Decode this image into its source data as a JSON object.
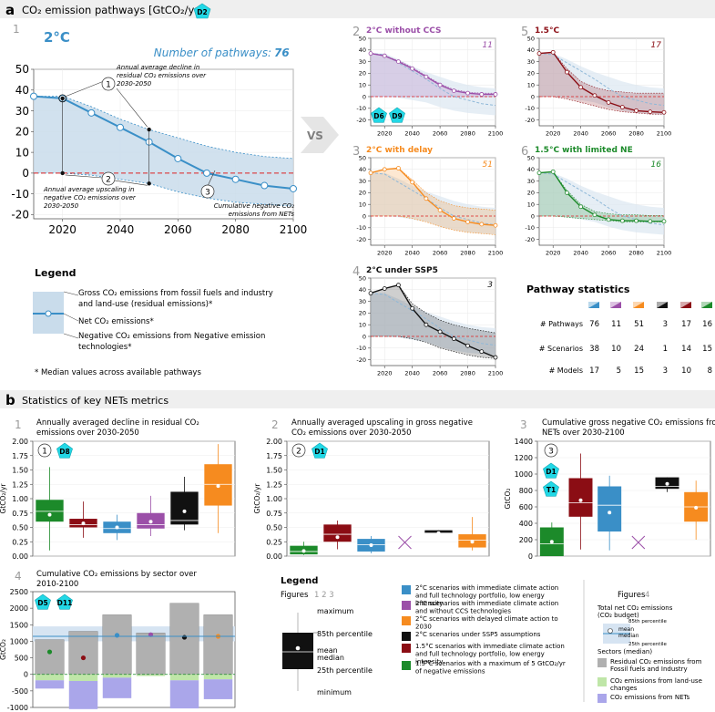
{
  "panel_a": {
    "letter": "a",
    "title": "CO₂ emission pathways [GtCO₂/yr]",
    "badge": "D2",
    "vs": "VS",
    "main": {
      "index": "1",
      "name": "2°C",
      "npath_label": "Number of pathways:",
      "npath_value": "76",
      "ann1": "Annual average decline in residual CO₂ emissions over 2030-2050",
      "ann2": "Annual average upscaling in negative CO₂ emissions over 2030-2050",
      "ann3": "Cumulative negative CO₂ emissions from NETs",
      "n1": "1",
      "n2": "2",
      "n3": "3"
    },
    "legend": {
      "title": "Legend",
      "gross": "Gross CO₂ emissions from fossil fuels and industry and land-use (residual emissions)*",
      "net": "Net CO₂ emissions*",
      "neg": "Negative CO₂ emissions from Negative emission technologies*",
      "note": "* Median values across available pathways"
    },
    "small_badges": [
      "D6",
      "D9"
    ],
    "stats": {
      "title": "Pathway statistics",
      "rows": [
        {
          "label": "# Pathways",
          "values": [
            "76",
            "11",
            "51",
            "3",
            "17",
            "16"
          ]
        },
        {
          "label": "# Scenarios",
          "values": [
            "38",
            "10",
            "24",
            "1",
            "14",
            "15"
          ]
        },
        {
          "label": "# Models",
          "values": [
            "17",
            "5",
            "15",
            "3",
            "10",
            "8"
          ]
        }
      ]
    }
  },
  "panel_b": {
    "letter": "b",
    "title": "Statistics of key NETs metrics",
    "c1": {
      "index": "1",
      "title": "Annually averaged decline in residual CO₂ emissions over 2030-2050",
      "badge": "D8",
      "n": "1"
    },
    "c2": {
      "index": "2",
      "title": "Annually averaged upscaling in gross negative CO₂ emissions over 2030-2050",
      "badge": "D1",
      "n": "2"
    },
    "c3": {
      "index": "3",
      "title": "Cumulative gross negative CO₂ emissions from NETs over 2030-2100",
      "badges": [
        "D1",
        "T1"
      ],
      "n": "3"
    },
    "c4": {
      "index": "4",
      "title": "Cumulative CO₂ emissions by sector over 2010-2100",
      "badges": [
        "D5",
        "D11"
      ]
    },
    "legend": {
      "title": "Legend",
      "figures_label": "Figures",
      "figures_nums": "1 2 3",
      "box_labels": [
        "maximum",
        "85th percentile",
        "mean",
        "median",
        "25th percentile",
        "minimum"
      ],
      "entries": [
        {
          "color": "#3a8fc7",
          "text": "2°C scenarios with immediate climate action and full technology portfolio, low energy intensity"
        },
        {
          "color": "#9b4fa8",
          "text": "2°C scenarios with immediate climate action and without CCS technologies"
        },
        {
          "color": "#f68b1f",
          "text": "2°C scenarios with delayed climate action to 2030"
        },
        {
          "color": "#111111",
          "text": "2°C scenarios under SSP5 assumptions"
        },
        {
          "color": "#8b0d14",
          "text": "1.5°C scenarios with immediate climate action and full technology portfolio, low energy intensity"
        },
        {
          "color": "#1c8a2a",
          "text": "1.5°C scenarios with a maximum of 5 GtCO₂/yr of negative emissions"
        }
      ],
      "fig4_label": "Figures",
      "fig4_num": "4",
      "fig4_total": "Total net CO₂ emissions (CO₂ budget)",
      "fig4_p85": "85th percentile",
      "fig4_mean": "mean",
      "fig4_median": "median",
      "fig4_p25": "25th percentile",
      "fig4_sectors": "Sectors (median)",
      "fig4_s1": "Residual CO₂ emissions from Fossil fuels and Industry",
      "fig4_s2": "CO₂ emissions from land-use changes",
      "fig4_s3": "CO₂ emissions from NETs"
    }
  },
  "chart_data": [
    {
      "id": "main_2C",
      "type": "line",
      "title": "2°C",
      "x": [
        2010,
        2020,
        2030,
        2040,
        2050,
        2060,
        2070,
        2080,
        2090,
        2100
      ],
      "series": [
        {
          "name": "Net CO₂ emissions (median)",
          "values": [
            37,
            36,
            29,
            22,
            15,
            7,
            0,
            -3,
            -6,
            -7.5
          ]
        },
        {
          "name": "Gross emissions (upper envelope)",
          "values": [
            37,
            37,
            32,
            26,
            21,
            17,
            13,
            10,
            8,
            7
          ]
        },
        {
          "name": "Negative emissions (lower envelope)",
          "values": [
            0,
            0,
            -1,
            -3,
            -5,
            -9,
            -12,
            -14,
            -15,
            -16
          ]
        }
      ],
      "xlim": [
        2010,
        2100
      ],
      "ylim": [
        -22,
        50
      ],
      "xticks": [
        2020,
        2040,
        2060,
        2080,
        2100
      ],
      "yticks": [
        -20,
        -10,
        0,
        10,
        20,
        30,
        40,
        50
      ],
      "annotation_points": [
        {
          "x": 2020,
          "y": 36
        },
        {
          "x": 2050,
          "y": 21
        },
        {
          "x": 2020,
          "y": 0
        },
        {
          "x": 2050,
          "y": -5
        }
      ]
    },
    {
      "id": "p2",
      "index": "2",
      "type": "line",
      "title": "2°C without CCS",
      "count": "11",
      "color": "#9b4fa8",
      "x": [
        2010,
        2020,
        2030,
        2040,
        2050,
        2060,
        2070,
        2080,
        2090,
        2100
      ],
      "net": [
        37,
        35,
        30,
        24,
        17,
        10,
        5,
        3,
        2,
        2
      ],
      "upper": [
        37,
        35,
        31,
        25,
        18,
        11,
        6,
        4,
        3,
        3
      ],
      "lower": [
        0,
        0,
        0,
        0,
        0,
        0,
        0,
        0,
        0,
        0
      ],
      "ref": [
        37,
        36,
        29,
        22,
        15,
        7,
        0,
        -3,
        -6,
        -7.5
      ],
      "xlim": [
        2010,
        2100
      ],
      "ylim": [
        -25,
        50
      ],
      "xticks": [
        2020,
        2040,
        2060,
        2080,
        2100
      ],
      "yticks": [
        -20,
        -10,
        0,
        10,
        20,
        30,
        40,
        50
      ]
    },
    {
      "id": "p5",
      "index": "5",
      "type": "line",
      "title": "1.5°C",
      "count": "17",
      "color": "#8b0d14",
      "x": [
        2010,
        2020,
        2030,
        2040,
        2050,
        2060,
        2070,
        2080,
        2090,
        2100
      ],
      "net": [
        37,
        38,
        21,
        8,
        1,
        -5,
        -9,
        -12,
        -13,
        -13.5
      ],
      "upper": [
        37,
        38,
        24,
        13,
        8,
        5,
        4,
        3,
        3,
        3
      ],
      "lower": [
        0,
        0,
        -2,
        -5,
        -8,
        -11,
        -13,
        -14,
        -15,
        -15
      ],
      "ref": [
        37,
        36,
        29,
        22,
        15,
        7,
        0,
        -3,
        -6,
        -7.5
      ],
      "xlim": [
        2010,
        2100
      ],
      "ylim": [
        -25,
        50
      ],
      "xticks": [
        2020,
        2040,
        2060,
        2080,
        2100
      ],
      "yticks": [
        -20,
        -10,
        0,
        10,
        20,
        30,
        40,
        50
      ]
    },
    {
      "id": "p3",
      "index": "3",
      "type": "line",
      "title": "2°C with delay",
      "count": "51",
      "color": "#f68b1f",
      "x": [
        2010,
        2020,
        2030,
        2040,
        2050,
        2060,
        2070,
        2080,
        2090,
        2100
      ],
      "net": [
        37,
        40,
        41,
        29,
        15,
        5,
        -2,
        -5,
        -7,
        -8
      ],
      "upper": [
        37,
        40,
        41,
        31,
        20,
        13,
        9,
        7,
        6,
        5
      ],
      "lower": [
        0,
        0,
        0,
        -2,
        -5,
        -9,
        -12,
        -14,
        -15,
        -16
      ],
      "ref": [
        37,
        36,
        29,
        22,
        15,
        7,
        0,
        -3,
        -6,
        -7.5
      ],
      "xlim": [
        2010,
        2100
      ],
      "ylim": [
        -25,
        50
      ],
      "xticks": [
        2020,
        2040,
        2060,
        2080,
        2100
      ],
      "yticks": [
        -20,
        -10,
        0,
        10,
        20,
        30,
        40,
        50
      ]
    },
    {
      "id": "p6",
      "index": "6",
      "type": "line",
      "title": "1.5°C with limited NE",
      "count": "16",
      "color": "#1c8a2a",
      "x": [
        2010,
        2020,
        2030,
        2040,
        2050,
        2060,
        2070,
        2080,
        2090,
        2100
      ],
      "net": [
        37,
        38,
        20,
        8,
        1,
        -3,
        -4,
        -4,
        -4.5,
        -4.5
      ],
      "upper": [
        37,
        38,
        22,
        10,
        4,
        2,
        1,
        1,
        0.5,
        0.5
      ],
      "lower": [
        0,
        0,
        -1,
        -2,
        -3,
        -4,
        -5,
        -5,
        -5,
        -5
      ],
      "ref": [
        37,
        36,
        29,
        22,
        15,
        7,
        0,
        -3,
        -6,
        -7.5
      ],
      "xlim": [
        2010,
        2100
      ],
      "ylim": [
        -25,
        50
      ],
      "xticks": [
        2020,
        2040,
        2060,
        2080,
        2100
      ],
      "yticks": [
        -20,
        -10,
        0,
        10,
        20,
        30,
        40,
        50
      ]
    },
    {
      "id": "p4",
      "index": "4",
      "type": "line",
      "title": "2°C under SSP5",
      "count": "3",
      "color": "#111111",
      "x": [
        2010,
        2020,
        2030,
        2040,
        2050,
        2060,
        2070,
        2080,
        2090,
        2100
      ],
      "net": [
        37,
        41,
        44,
        24,
        10,
        4,
        -2,
        -8,
        -13,
        -18
      ],
      "upper": [
        37,
        41,
        44,
        28,
        20,
        14,
        10,
        7,
        5,
        3
      ],
      "lower": [
        0,
        0,
        0,
        -2,
        -5,
        -10,
        -13,
        -16,
        -18,
        -19
      ],
      "ref": [
        37,
        36,
        29,
        22,
        15,
        7,
        0,
        -3,
        -6,
        -7.5
      ],
      "xlim": [
        2010,
        2100
      ],
      "ylim": [
        -25,
        50
      ],
      "xticks": [
        2020,
        2040,
        2060,
        2080,
        2100
      ],
      "yticks": [
        -20,
        -10,
        0,
        10,
        20,
        30,
        40,
        50
      ]
    },
    {
      "id": "b1",
      "type": "box",
      "ylabel": "GtCO₂/yr",
      "ylim": [
        0,
        2.0
      ],
      "yticks": [
        0.0,
        0.25,
        0.5,
        0.75,
        1.0,
        1.25,
        1.5,
        1.75,
        2.0
      ],
      "boxes": [
        {
          "color": "#1c8a2a",
          "min": 0.1,
          "p25": 0.6,
          "median": 0.78,
          "p85": 0.98,
          "max": 1.55,
          "mean": 0.72
        },
        {
          "color": "#8b0d14",
          "min": 0.32,
          "p25": 0.5,
          "median": 0.55,
          "p85": 0.65,
          "max": 0.95,
          "mean": 0.57
        },
        {
          "color": "#3a8fc7",
          "min": 0.28,
          "p25": 0.4,
          "median": 0.48,
          "p85": 0.6,
          "max": 0.72,
          "mean": 0.5
        },
        {
          "color": "#9b4fa8",
          "min": 0.35,
          "p25": 0.48,
          "median": 0.55,
          "p85": 0.75,
          "max": 1.05,
          "mean": 0.6
        },
        {
          "color": "#111111",
          "min": 0.45,
          "p25": 0.55,
          "median": 0.62,
          "p85": 1.12,
          "max": 1.38,
          "mean": 0.78
        },
        {
          "color": "#f68b1f",
          "min": 0.4,
          "p25": 0.88,
          "median": 1.25,
          "p85": 1.6,
          "max": 1.95,
          "mean": 1.22
        }
      ]
    },
    {
      "id": "b2",
      "type": "box",
      "ylabel": "GtCO₂/yr",
      "ylim": [
        0,
        2.0
      ],
      "yticks": [
        0.0,
        0.25,
        0.5,
        0.75,
        1.0,
        1.25,
        1.5,
        1.75,
        2.0
      ],
      "boxes": [
        {
          "color": "#1c8a2a",
          "min": 0.02,
          "p25": 0.03,
          "median": 0.08,
          "p85": 0.18,
          "max": 0.25,
          "mean": 0.09
        },
        {
          "color": "#8b0d14",
          "min": 0.12,
          "p25": 0.25,
          "median": 0.38,
          "p85": 0.55,
          "max": 0.62,
          "mean": 0.33
        },
        {
          "color": "#3a8fc7",
          "min": 0.05,
          "p25": 0.08,
          "median": 0.2,
          "p85": 0.3,
          "max": 0.35,
          "mean": 0.19
        },
        {
          "color": "#9b4fa8",
          "empty": true
        },
        {
          "color": "#111111",
          "min": 0.4,
          "p25": 0.4,
          "median": 0.4,
          "p85": 0.45,
          "max": 0.45,
          "mean": 0.4
        },
        {
          "color": "#f68b1f",
          "min": 0.1,
          "p25": 0.15,
          "median": 0.28,
          "p85": 0.38,
          "max": 0.68,
          "mean": 0.25
        }
      ]
    },
    {
      "id": "b3",
      "type": "box",
      "ylabel": "GtCO₂",
      "ylim": [
        0,
        1400
      ],
      "yticks": [
        0,
        200,
        400,
        600,
        800,
        1000,
        1200,
        1400
      ],
      "boxes": [
        {
          "color": "#1c8a2a",
          "min": 0,
          "p25": 0,
          "median": 150,
          "p85": 350,
          "max": 410,
          "mean": 175
        },
        {
          "color": "#8b0d14",
          "min": 80,
          "p25": 480,
          "median": 650,
          "p85": 950,
          "max": 1250,
          "mean": 680
        },
        {
          "color": "#3a8fc7",
          "min": 70,
          "p25": 300,
          "median": 620,
          "p85": 850,
          "max": 980,
          "mean": 530
        },
        {
          "color": "#9b4fa8",
          "empty": true
        },
        {
          "color": "#111111",
          "min": 780,
          "p25": 820,
          "median": 850,
          "p85": 960,
          "max": 960,
          "mean": 880
        },
        {
          "color": "#f68b1f",
          "min": 200,
          "p25": 420,
          "median": 600,
          "p85": 780,
          "max": 920,
          "mean": 590
        }
      ]
    },
    {
      "id": "b4",
      "type": "bar",
      "ylabel": "GtCO₂",
      "ylim": [
        -1000,
        2500
      ],
      "yticks": [
        -1000,
        -500,
        0,
        500,
        1000,
        1500,
        2000,
        2500
      ],
      "budget": {
        "p25": 1000,
        "median": 1150,
        "p85": 1450
      },
      "bars": [
        {
          "color": "#1c8a2a",
          "residual": 1050,
          "landuse": -180,
          "nets": -250,
          "mean": 680
        },
        {
          "color": "#8b0d14",
          "residual": 1300,
          "landuse": -200,
          "nets": -850,
          "mean": 500
        },
        {
          "color": "#3a8fc7",
          "residual": 1800,
          "landuse": -100,
          "nets": -620,
          "mean": 1180
        },
        {
          "color": "#9b4fa8",
          "residual": 1250,
          "landuse": -50,
          "nets": 0,
          "mean": 1200
        },
        {
          "color": "#111111",
          "residual": 2150,
          "landuse": -180,
          "nets": -850,
          "mean": 1120
        },
        {
          "color": "#f68b1f",
          "residual": 1800,
          "landuse": -150,
          "nets": -600,
          "mean": 1150
        }
      ]
    }
  ]
}
